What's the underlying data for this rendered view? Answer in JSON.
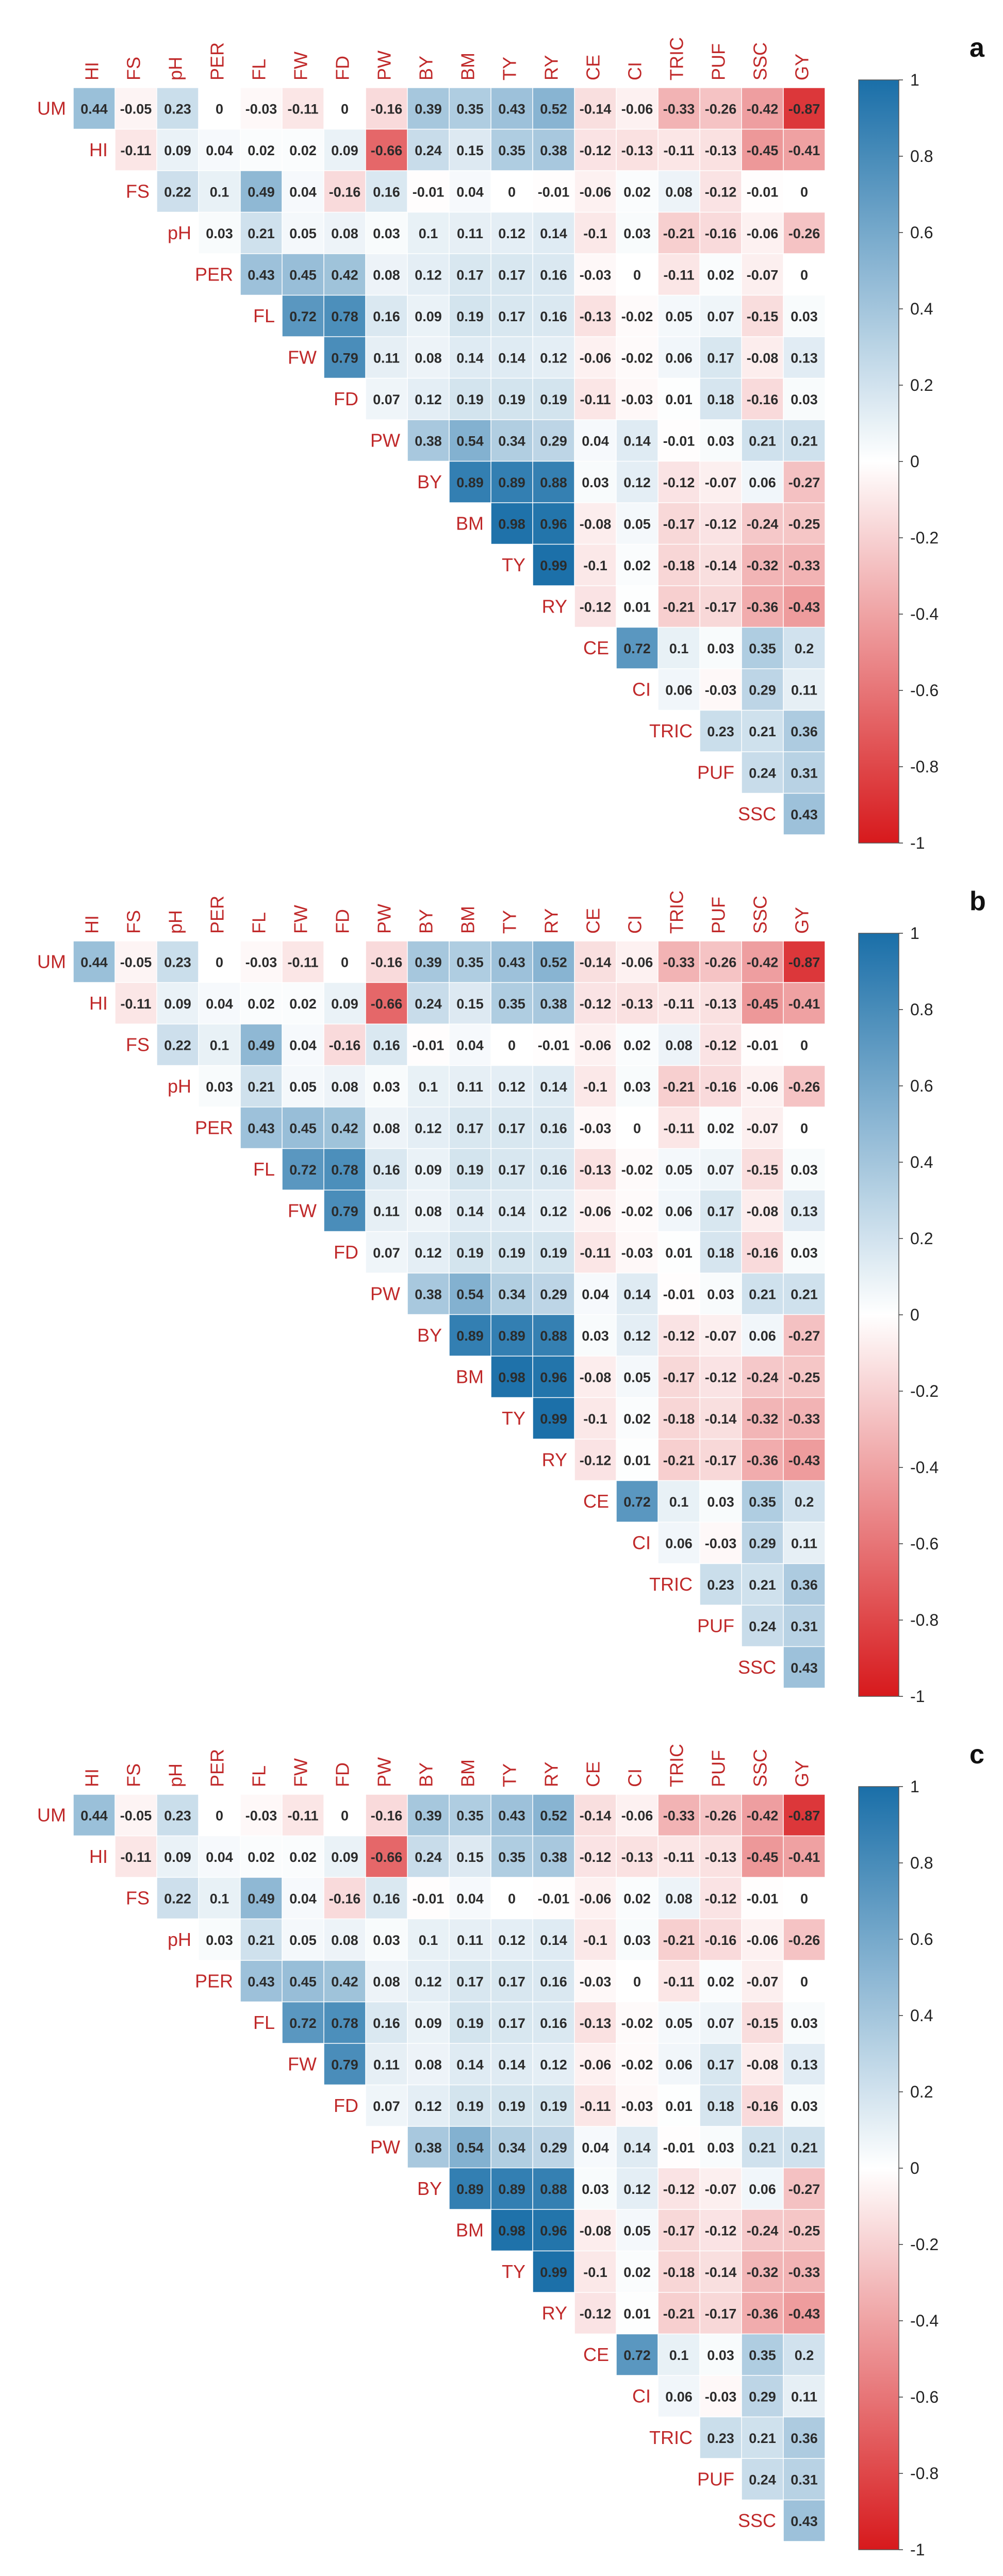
{
  "chart_data": {
    "type": "heatmap",
    "subtype": "upper-triangular correlation matrix",
    "colorscale": {
      "min": -1,
      "max": 1,
      "negative_color": "#d7191c",
      "zero_color": "#ffffff",
      "positive_color": "#1a6fa8",
      "ticks": [
        "1",
        "0.8",
        "0.6",
        "0.4",
        "0.2",
        "0",
        "-0.2",
        "-0.4",
        "-0.6",
        "-0.8",
        "-1"
      ]
    },
    "label_color": "#c0292a",
    "value_text_color": "#2b2b2b",
    "column_labels": [
      "HI",
      "FS",
      "pH",
      "PER",
      "FL",
      "FW",
      "FD",
      "PW",
      "BY",
      "BM",
      "TY",
      "RY",
      "CE",
      "CI",
      "TRIC",
      "PUF",
      "SSC",
      "GY"
    ],
    "row_labels": [
      "UM",
      "HI",
      "FS",
      "pH",
      "PER",
      "FL",
      "FW",
      "FD",
      "PW",
      "BY",
      "BM",
      "TY",
      "RY",
      "CE",
      "CI",
      "TRIC",
      "PUF",
      "SSC"
    ],
    "matrix": [
      [
        "0.44",
        "-0.05",
        "0.23",
        "0",
        "-0.03",
        "-0.11",
        "0",
        "-0.16",
        "0.39",
        "0.35",
        "0.43",
        "0.52",
        "-0.14",
        "-0.06",
        "-0.33",
        "-0.26",
        "-0.42",
        "-0.87"
      ],
      [
        "-0.11",
        "0.09",
        "0.04",
        "0.02",
        "0.02",
        "0.09",
        "-0.66",
        "0.24",
        "0.15",
        "0.35",
        "0.38",
        "-0.12",
        "-0.13",
        "-0.11",
        "-0.13",
        "-0.45",
        "-0.41"
      ],
      [
        "0.22",
        "0.1",
        "0.49",
        "0.04",
        "-0.16",
        "0.16",
        "-0.01",
        "0.04",
        "0",
        "-0.01",
        "-0.06",
        "0.02",
        "0.08",
        "-0.12",
        "-0.01",
        "0"
      ],
      [
        "0.03",
        "0.21",
        "0.05",
        "0.08",
        "0.03",
        "0.1",
        "0.11",
        "0.12",
        "0.14",
        "-0.1",
        "0.03",
        "-0.21",
        "-0.16",
        "-0.06",
        "-0.26"
      ],
      [
        "0.43",
        "0.45",
        "0.42",
        "0.08",
        "0.12",
        "0.17",
        "0.17",
        "0.16",
        "-0.03",
        "0",
        "-0.11",
        "0.02",
        "-0.07",
        "0"
      ],
      [
        "0.72",
        "0.78",
        "0.16",
        "0.09",
        "0.19",
        "0.17",
        "0.16",
        "-0.13",
        "-0.02",
        "0.05",
        "0.07",
        "-0.15",
        "0.03"
      ],
      [
        "0.79",
        "0.11",
        "0.08",
        "0.14",
        "0.14",
        "0.12",
        "-0.06",
        "-0.02",
        "0.06",
        "0.17",
        "-0.08",
        "0.13"
      ],
      [
        "0.07",
        "0.12",
        "0.19",
        "0.19",
        "0.19",
        "-0.11",
        "-0.03",
        "0.01",
        "0.18",
        "-0.16",
        "0.03"
      ],
      [
        "0.38",
        "0.54",
        "0.34",
        "0.29",
        "0.04",
        "0.14",
        "-0.01",
        "0.03",
        "0.21",
        "0.21"
      ],
      [
        "0.89",
        "0.89",
        "0.88",
        "0.03",
        "0.12",
        "-0.12",
        "-0.07",
        "0.06",
        "-0.27"
      ],
      [
        "0.98",
        "0.96",
        "-0.08",
        "0.05",
        "-0.17",
        "-0.12",
        "-0.24",
        "-0.25"
      ],
      [
        "0.99",
        "-0.1",
        "0.02",
        "-0.18",
        "-0.14",
        "-0.32",
        "-0.33"
      ],
      [
        "-0.12",
        "0.01",
        "-0.21",
        "-0.17",
        "-0.36",
        "-0.43"
      ],
      [
        "0.72",
        "0.1",
        "0.03",
        "0.35",
        "0.2"
      ],
      [
        "0.06",
        "-0.03",
        "0.29",
        "0.11"
      ],
      [
        "0.23",
        "0.21",
        "0.36"
      ],
      [
        "0.24",
        "0.31"
      ],
      [
        "0.43"
      ]
    ],
    "panels": [
      {
        "letter": "a"
      },
      {
        "letter": "b"
      },
      {
        "letter": "c"
      }
    ]
  }
}
